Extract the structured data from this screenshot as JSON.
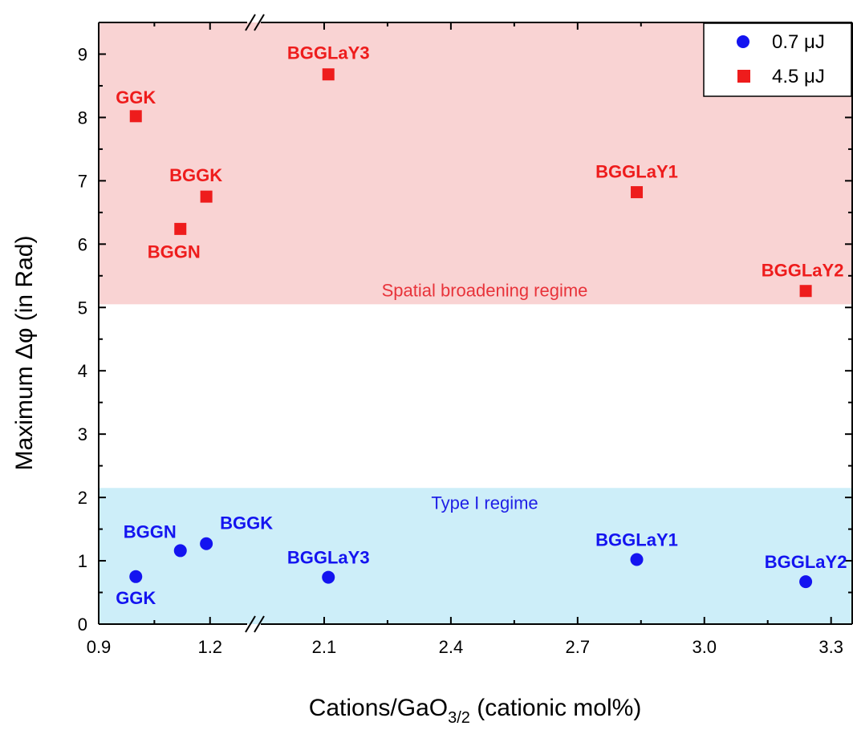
{
  "chart_data": {
    "type": "scatter",
    "title": "",
    "xlabel": "Cations/GaO",
    "xlabel_sub": "3/2",
    "xlabel_suffix": " (cationic mol%)",
    "ylabel": "Maximum Δφ (in Rad)",
    "ylim": [
      0,
      9.5
    ],
    "x_axis_break": "between 1.2 and 2.1",
    "x_segments": [
      {
        "range": [
          0.9,
          1.3
        ],
        "ticks": [
          "0.9",
          "1.2"
        ]
      },
      {
        "range": [
          1.95,
          3.35
        ],
        "ticks": [
          "2.1",
          "2.4",
          "2.7",
          "3.0",
          "3.3"
        ]
      }
    ],
    "y_ticks": [
      "0",
      "1",
      "2",
      "3",
      "4",
      "5",
      "6",
      "7",
      "8",
      "9"
    ],
    "legend_position": "top-right",
    "grid": false,
    "regions": [
      {
        "name": "Spatial broadening regime",
        "y_range": [
          5.05,
          9.5
        ],
        "color": "#f9d3d3",
        "label_color": "#e8333a"
      },
      {
        "name": "Type I regime",
        "y_range": [
          0,
          2.15
        ],
        "color": "#cdeef9",
        "label_color": "#1f1fe6"
      }
    ],
    "series": [
      {
        "name": "0.7 μJ",
        "marker": "circle",
        "color": "#1414f0",
        "label_color": "#1414f0",
        "points": [
          {
            "label": "GGK",
            "x": 1.0,
            "y": 0.75
          },
          {
            "label": "BGGN",
            "x": 1.12,
            "y": 1.16
          },
          {
            "label": "BGGK",
            "x": 1.19,
            "y": 1.27
          },
          {
            "label": "BGGLaY3",
            "x": 2.11,
            "y": 0.74
          },
          {
            "label": "BGGLaY1",
            "x": 2.84,
            "y": 1.02
          },
          {
            "label": "BGGLaY2",
            "x": 3.24,
            "y": 0.67
          }
        ]
      },
      {
        "name": "4.5 μJ",
        "marker": "square",
        "color": "#ee1c1c",
        "label_color": "#ee1c1c",
        "points": [
          {
            "label": "GGK",
            "x": 1.0,
            "y": 8.02
          },
          {
            "label": "BGGN",
            "x": 1.12,
            "y": 6.24
          },
          {
            "label": "BGGK",
            "x": 1.19,
            "y": 6.75
          },
          {
            "label": "BGGLaY3",
            "x": 2.11,
            "y": 8.68
          },
          {
            "label": "BGGLaY1",
            "x": 2.84,
            "y": 6.82
          },
          {
            "label": "BGGLaY2",
            "x": 3.24,
            "y": 5.26
          }
        ]
      }
    ]
  }
}
